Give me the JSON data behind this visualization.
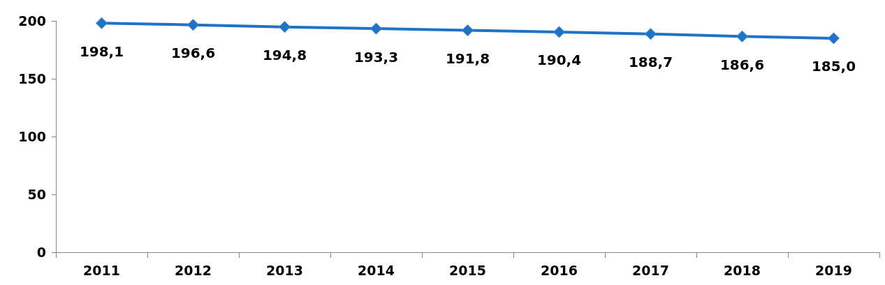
{
  "chart_data": {
    "type": "line",
    "categories": [
      "2011",
      "2012",
      "2013",
      "2014",
      "2015",
      "2016",
      "2017",
      "2018",
      "2019"
    ],
    "series": [
      {
        "color": "#1f72c4",
        "values": [
          198.1,
          196.6,
          194.8,
          193.3,
          191.8,
          190.4,
          188.7,
          186.6,
          185.0
        ],
        "value_labels": [
          "198,1",
          "196,6",
          "194,8",
          "193,3",
          "191,8",
          "190,4",
          "188,7",
          "186,6",
          "185,0"
        ]
      }
    ],
    "ylim": [
      0,
      200
    ],
    "yticks": [
      0,
      50,
      100,
      150,
      200
    ],
    "grid": false,
    "marker": "diamond",
    "line_style": "solid"
  }
}
